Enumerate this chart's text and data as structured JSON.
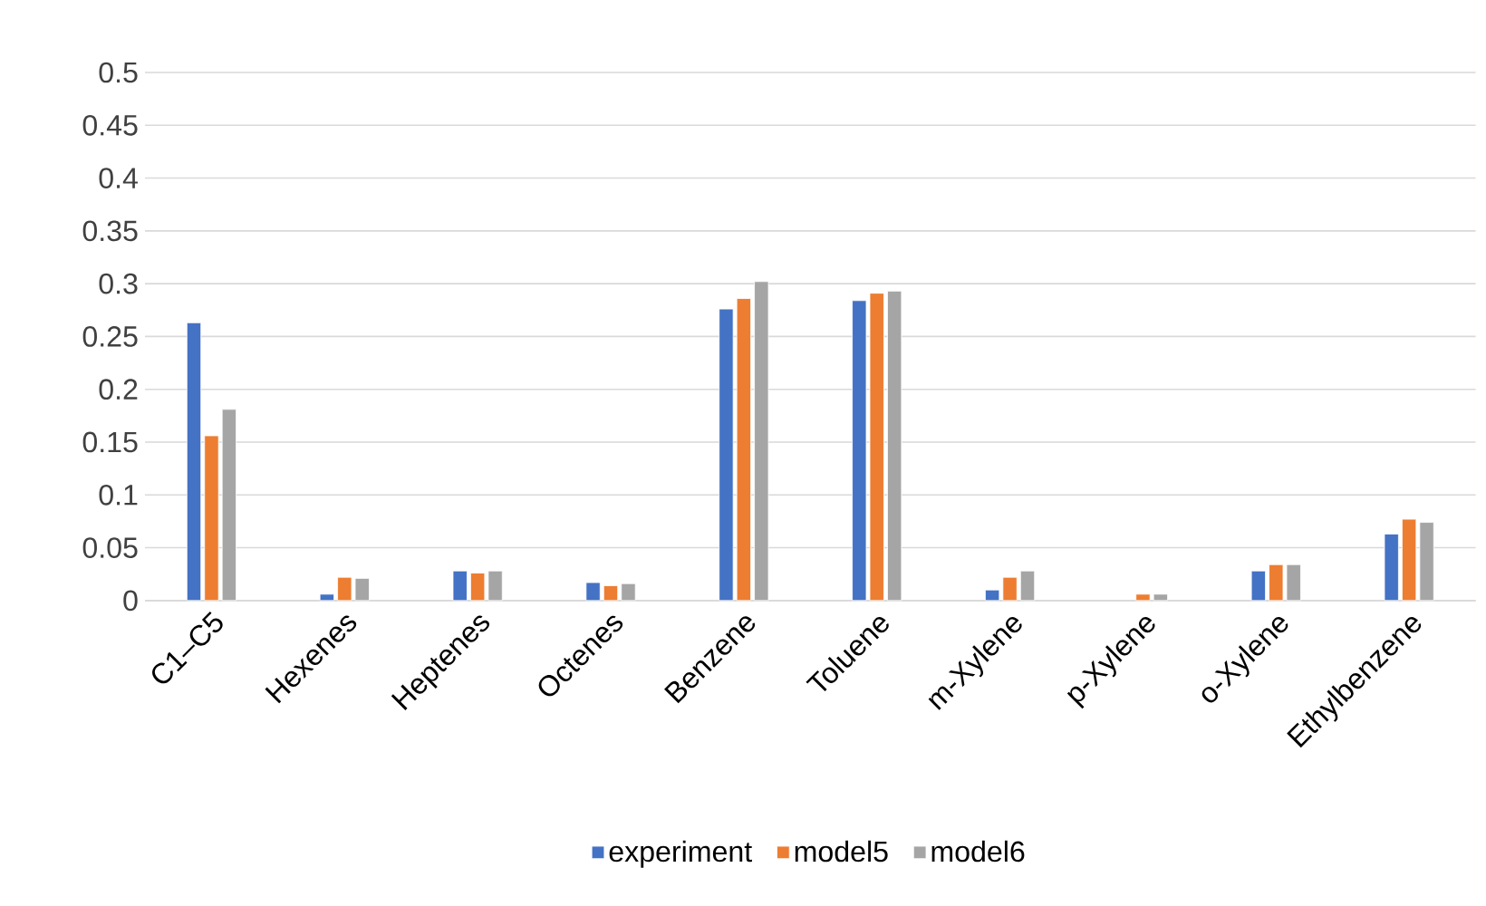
{
  "chart_data": {
    "type": "bar",
    "categories": [
      "C1–C5",
      "Hexenes",
      "Heptenes",
      "Octenes",
      "Benzene",
      "Toluene",
      "m-Xylene",
      "p-Xylene",
      "o-Xylene",
      "Ethylbenzene"
    ],
    "series": [
      {
        "name": "experiment",
        "color": "#4472c4",
        "values": [
          0.263,
          0.006,
          0.028,
          0.017,
          0.276,
          0.284,
          0.01,
          null,
          0.028,
          0.063
        ]
      },
      {
        "name": "model5",
        "color": "#ed7d31",
        "values": [
          0.156,
          0.022,
          0.026,
          0.014,
          0.286,
          0.291,
          0.022,
          0.006,
          0.034,
          0.077
        ]
      },
      {
        "name": "model6",
        "color": "#a5a5a5",
        "values": [
          0.181,
          0.021,
          0.028,
          0.016,
          0.302,
          0.293,
          0.028,
          0.006,
          0.034,
          0.074
        ]
      }
    ],
    "ylim": [
      0,
      0.5
    ],
    "yticks": [
      0,
      0.05,
      0.1,
      0.15,
      0.2,
      0.25,
      0.3,
      0.35,
      0.4,
      0.45,
      0.5
    ],
    "grid": "y",
    "legend": "bottom"
  }
}
